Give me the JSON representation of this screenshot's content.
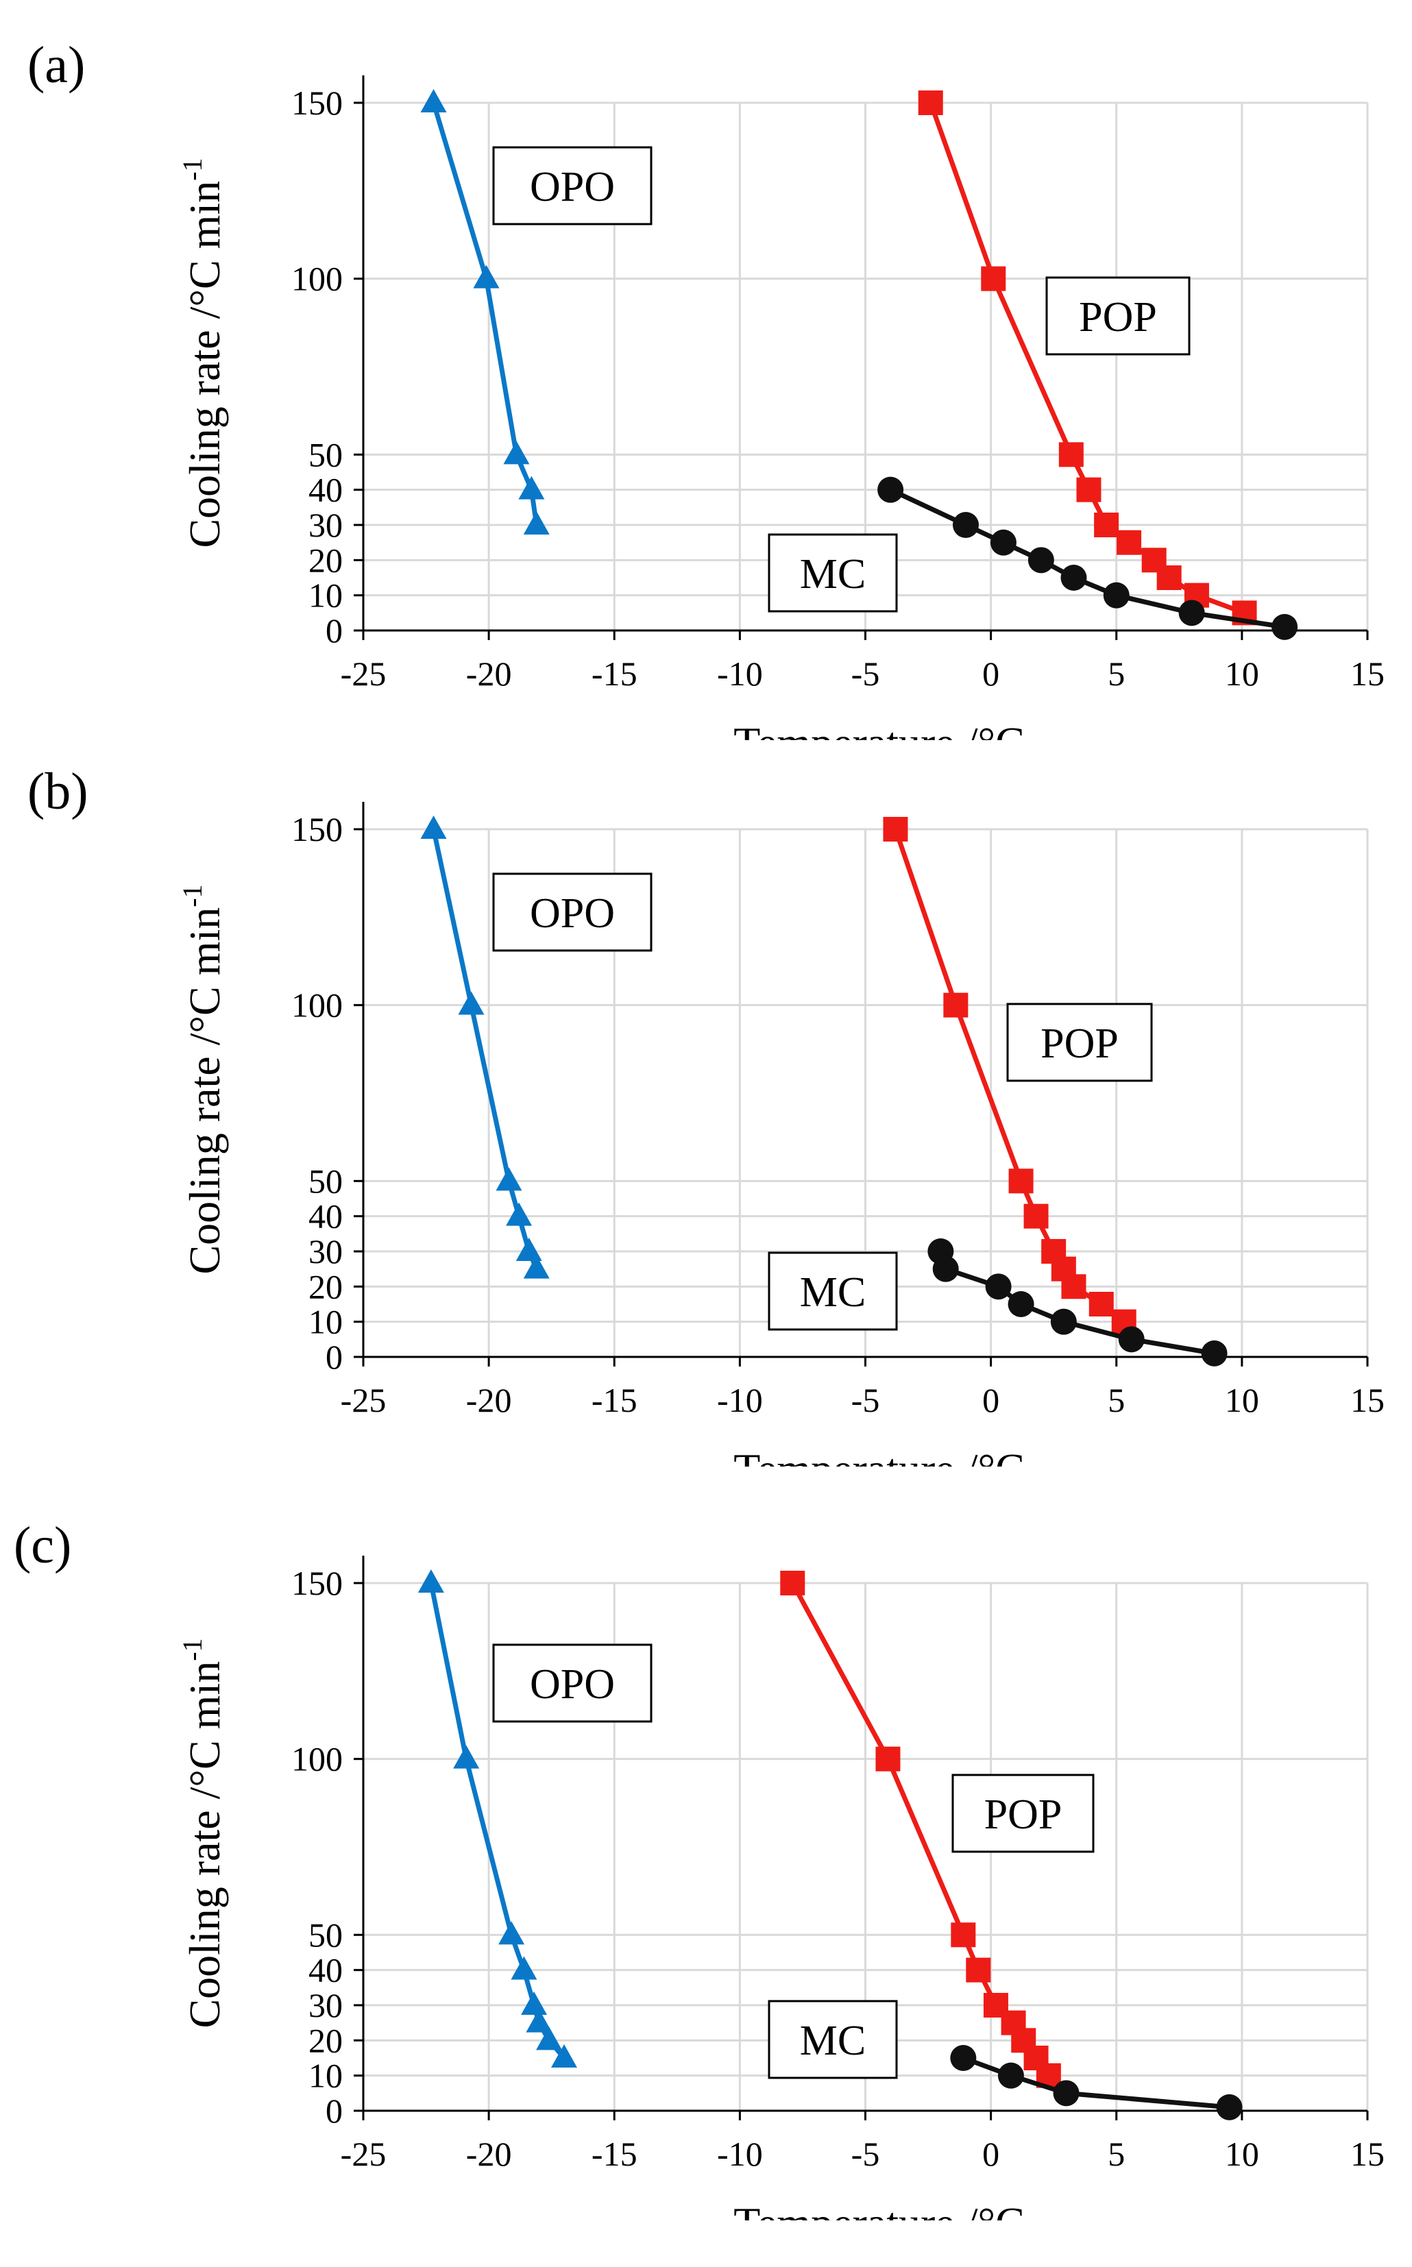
{
  "colors": {
    "OPO": "#0a78c8",
    "POP": "#ee1c16",
    "MC": "#111111",
    "grid": "#d9d9d9"
  },
  "chart_data": [
    {
      "panel_label": "(a)",
      "type": "line",
      "xlabel": "Temperature /°C",
      "ylabel": "Cooling rate /°C min",
      "ylabel_sup": "-1",
      "xlim": [
        -25,
        15
      ],
      "ylim": [
        0,
        150
      ],
      "xticks": [
        "-25",
        "-20",
        "-15",
        "-10",
        "-5",
        "0",
        "5",
        "10",
        "15"
      ],
      "yticks": [
        "0",
        "10",
        "20",
        "30",
        "40",
        "50",
        "100",
        "150"
      ],
      "grid": true,
      "series": [
        {
          "name": "OPO",
          "marker": "triangle",
          "x": [
            -22.2,
            -20.1,
            -18.9,
            -18.3,
            -18.1
          ],
          "y": [
            150,
            100,
            50,
            40,
            30
          ]
        },
        {
          "name": "POP",
          "marker": "square",
          "x": [
            -2.4,
            0.1,
            3.2,
            3.9,
            4.6,
            5.5,
            6.5,
            7.1,
            8.2,
            10.1
          ],
          "y": [
            150,
            100,
            50,
            40,
            30,
            25,
            20,
            15,
            10,
            5
          ]
        },
        {
          "name": "MC",
          "marker": "circle",
          "x": [
            -4.0,
            -1.0,
            0.5,
            2.0,
            3.3,
            5.0,
            8.0,
            11.7
          ],
          "y": [
            40,
            30,
            25,
            20,
            15,
            10,
            5,
            1
          ]
        }
      ]
    },
    {
      "panel_label": "(b)",
      "type": "line",
      "xlabel": "Temperature /°C",
      "ylabel": "Cooling rate /°C min",
      "ylabel_sup": "-1",
      "xlim": [
        -25,
        15
      ],
      "ylim": [
        0,
        150
      ],
      "xticks": [
        "-25",
        "-20",
        "-15",
        "-10",
        "-5",
        "0",
        "5",
        "10",
        "15"
      ],
      "yticks": [
        "0",
        "10",
        "20",
        "30",
        "40",
        "50",
        "100",
        "150"
      ],
      "grid": true,
      "series": [
        {
          "name": "OPO",
          "marker": "triangle",
          "x": [
            -22.2,
            -20.7,
            -19.2,
            -18.8,
            -18.4,
            -18.1
          ],
          "y": [
            150,
            100,
            50,
            40,
            30,
            25
          ]
        },
        {
          "name": "POP",
          "marker": "square",
          "x": [
            -3.8,
            -1.4,
            1.2,
            1.8,
            2.5,
            2.9,
            3.3,
            4.4,
            5.3
          ],
          "y": [
            150,
            100,
            50,
            40,
            30,
            25,
            20,
            15,
            10
          ]
        },
        {
          "name": "MC",
          "marker": "circle",
          "x": [
            -2.0,
            -1.8,
            0.3,
            1.2,
            2.9,
            5.6,
            8.9
          ],
          "y": [
            30,
            25,
            20,
            15,
            10,
            5,
            1
          ]
        }
      ]
    },
    {
      "panel_label": "(c)",
      "type": "line",
      "xlabel": "Temperature /°C",
      "ylabel": "Cooling rate /°C min",
      "ylabel_sup": "-1",
      "xlim": [
        -25,
        15
      ],
      "ylim": [
        0,
        150
      ],
      "xticks": [
        "-25",
        "-20",
        "-15",
        "-10",
        "-5",
        "0",
        "5",
        "10",
        "15"
      ],
      "yticks": [
        "0",
        "10",
        "20",
        "30",
        "40",
        "50",
        "100",
        "150"
      ],
      "grid": true,
      "series": [
        {
          "name": "OPO",
          "marker": "triangle",
          "x": [
            -22.3,
            -20.9,
            -19.1,
            -18.6,
            -18.2,
            -18.0,
            -17.6,
            -17.0
          ],
          "y": [
            150,
            100,
            50,
            40,
            30,
            25,
            20,
            15
          ]
        },
        {
          "name": "POP",
          "marker": "square",
          "x": [
            -7.9,
            -4.1,
            -1.1,
            -0.5,
            0.2,
            0.9,
            1.3,
            1.8,
            2.3
          ],
          "y": [
            150,
            100,
            50,
            40,
            30,
            25,
            20,
            15,
            10
          ]
        },
        {
          "name": "MC",
          "marker": "circle",
          "x": [
            -1.1,
            0.8,
            3.0,
            9.5
          ],
          "y": [
            15,
            10,
            5,
            1
          ]
        }
      ]
    }
  ]
}
